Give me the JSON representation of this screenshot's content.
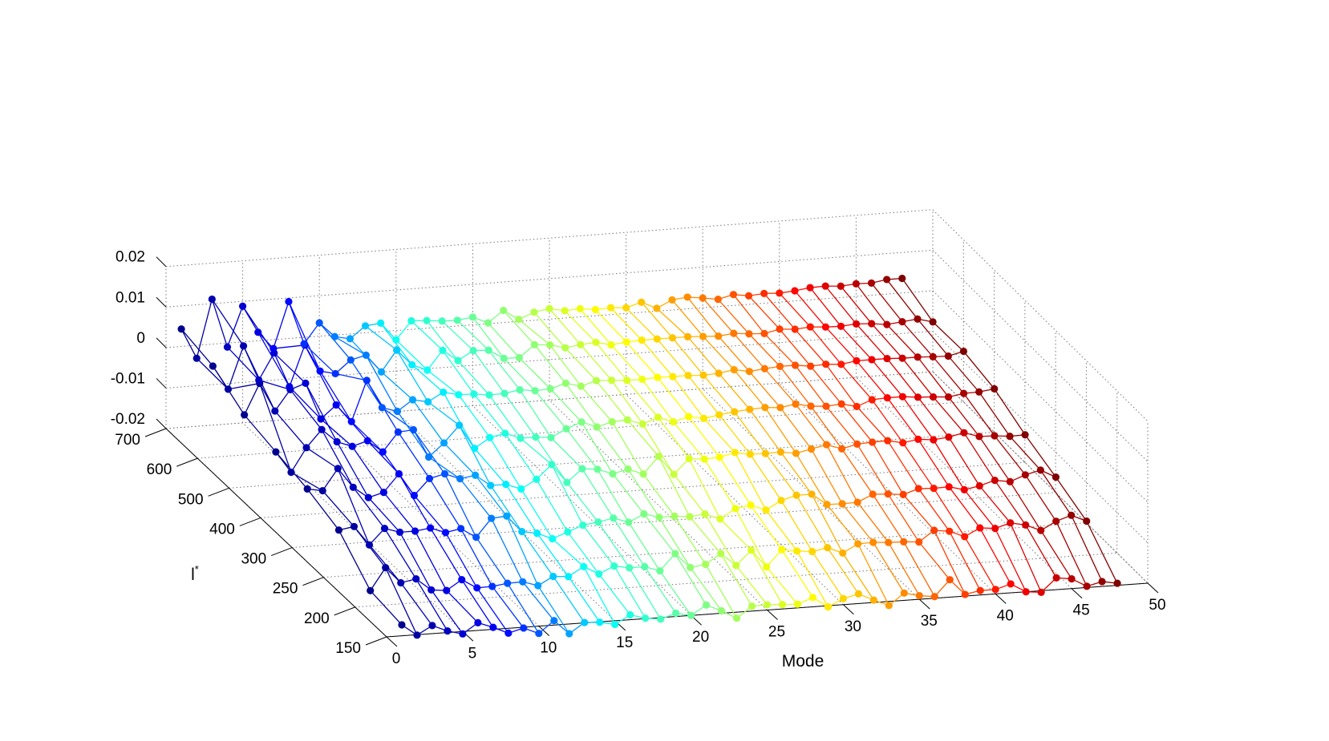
{
  "chart_data": {
    "type": "line3d",
    "xlabel": "Mode",
    "ylabel": "l*",
    "zlabel": "",
    "x_ticks": [
      0,
      5,
      10,
      15,
      20,
      25,
      30,
      35,
      40,
      45,
      50
    ],
    "y_ticks": [
      "150",
      "200",
      "250",
      "300",
      "400",
      "500",
      "600",
      "700"
    ],
    "z_ticks": [
      "-0.02",
      "-0.01",
      "0",
      "0.01",
      "0.02"
    ],
    "xlim": [
      0,
      50
    ],
    "zlim": [
      -0.02,
      0.02
    ],
    "grid": true,
    "colormap": "jet",
    "colormap_stops": [
      "#00008F",
      "#0000FF",
      "#00FFFF",
      "#80FF80",
      "#FFFF00",
      "#FF8000",
      "#FF0000",
      "#800000"
    ],
    "modes": [
      1,
      2,
      3,
      4,
      5,
      6,
      7,
      8,
      9,
      10,
      11,
      12,
      13,
      14,
      15,
      16,
      17,
      18,
      19,
      20,
      21,
      22,
      23,
      24,
      25,
      26,
      27,
      28,
      29,
      30,
      31,
      32,
      33,
      34,
      35,
      36,
      37,
      38,
      39,
      40,
      41,
      42,
      43,
      44,
      45,
      46,
      47,
      48
    ],
    "series": [
      {
        "l": "700",
        "values": [
          0.0043,
          -0.0032,
          0.0111,
          -0.001,
          0.0088,
          0.0021,
          -0.0022,
          0.0091,
          -0.0016,
          0.0033,
          -0.0004,
          -0.0012,
          0.0017,
          0.0021,
          -0.0023,
          0.0021,
          0.0019,
          0.0015,
          0.0014,
          0.0019,
          0.0002,
          0.003,
          0.0005,
          0.002,
          0.0026,
          0.0018,
          0.002,
          0.0015,
          0.0017,
          0.0014,
          0.0025,
          0.0007,
          0.0025,
          0.0029,
          0.0024,
          0.0018,
          0.0027,
          0.0021,
          0.0024,
          0.0022,
          0.0025,
          0.003,
          0.0031,
          0.0028,
          0.0031,
          0.003,
          0.0036,
          0.0036
        ]
      },
      {
        "l": "600",
        "values": [
          0.0025,
          -0.0035,
          0.0069,
          -0.0018,
          0.0046,
          -0.004,
          0.006,
          -0.0007,
          -0.0016,
          0.0015,
          0.0024,
          -0.002,
          0.0031,
          -0.0008,
          -0.0024,
          0.0022,
          -0.0006,
          0.0016,
          0.0014,
          -0.0009,
          -0.001,
          0.0019,
          0.0016,
          0.0006,
          0.0011,
          0.0014,
          0.0005,
          0.0009,
          0.0011,
          0.0011,
          0.0011,
          0.0011,
          0.0009,
          0.0007,
          0.0011,
          0.0007,
          0.0005,
          0.0013,
          0.001,
          0.0013,
          0.001,
          0.0009,
          0.0012,
          0.001,
          0.0005,
          0.0009,
          0.0013,
          0.0003
        ]
      },
      {
        "l": "500",
        "values": [
          -0.0022,
          0.0053,
          -0.0018,
          0.0032,
          0.0045,
          -0.0046,
          -0.0014,
          -0.0058,
          0.0041,
          -0.0029,
          -0.0041,
          -0.0015,
          -0.0023,
          -0.0002,
          -0.0011,
          -0.0012,
          -0.0017,
          -0.0016,
          -0.001,
          -0.0015,
          -0.0013,
          -0.0002,
          -0.0012,
          -0.0001,
          -0.0003,
          -0.0006,
          -0.0006,
          -0.0004,
          -0.0005,
          -0.0005,
          -0.0007,
          -0.0005,
          0.0001,
          -0.0006,
          -0.0002,
          0.0001,
          0.0001,
          -0.0004,
          -0.0002,
          -0.0005,
          0.0001,
          0.0001,
          0.0001,
          -0.0001,
          -0.0001,
          -0.0003,
          -0.0004,
          0.0005
        ]
      },
      {
        "l": "400",
        "values": [
          -0.004,
          -0.0093,
          -0.0035,
          0.0007,
          -0.0026,
          -0.004,
          -0.0029,
          -0.0059,
          -0.0013,
          -0.001,
          -0.008,
          -0.0048,
          -0.0007,
          -0.0067,
          -0.0043,
          -0.0035,
          -0.005,
          -0.005,
          -0.0054,
          -0.0035,
          -0.0021,
          -0.0036,
          -0.0026,
          -0.0024,
          -0.0037,
          -0.0023,
          -0.0037,
          -0.0027,
          -0.0034,
          -0.0028,
          -0.0023,
          -0.002,
          -0.0018,
          -0.0021,
          -0.0015,
          -0.0023,
          -0.0026,
          -0.0023,
          -0.0032,
          -0.0018,
          -0.0016,
          -0.0016,
          -0.002,
          -0.0022,
          -0.0025,
          -0.0019,
          -0.0018,
          -0.0013
        ]
      },
      {
        "l": "300",
        "values": [
          -0.0058,
          -0.0065,
          -0.0013,
          -0.0062,
          -0.009,
          -0.008,
          -0.0037,
          -0.0093,
          -0.0054,
          -0.0045,
          -0.006,
          -0.0054,
          -0.0082,
          -0.0082,
          -0.0096,
          -0.0075,
          -0.0041,
          -0.0088,
          -0.0057,
          -0.0061,
          -0.0075,
          -0.0066,
          -0.0081,
          -0.004,
          -0.0087,
          -0.0051,
          -0.0055,
          -0.0053,
          -0.0044,
          -0.0051,
          -0.0052,
          -0.0051,
          -0.0057,
          -0.0049,
          -0.0041,
          -0.0054,
          -0.0045,
          -0.0043,
          -0.0042,
          -0.005,
          -0.0044,
          -0.0048,
          -0.0044,
          -0.0036,
          -0.0048,
          -0.0049,
          -0.0053,
          -0.0052
        ]
      },
      {
        "l": "250",
        "values": [
          -0.0086,
          -0.008,
          -0.0128,
          -0.009,
          -0.0102,
          -0.0102,
          -0.0097,
          -0.0111,
          -0.0104,
          -0.0128,
          -0.0084,
          -0.0081,
          -0.0122,
          -0.0129,
          -0.0145,
          -0.0131,
          -0.0117,
          -0.0112,
          -0.0105,
          -0.0118,
          -0.01,
          -0.0111,
          -0.0111,
          -0.0115,
          -0.0111,
          -0.0126,
          -0.0103,
          -0.0097,
          -0.0112,
          -0.0091,
          -0.0081,
          -0.0081,
          -0.0109,
          -0.011,
          -0.0109,
          -0.0092,
          -0.0094,
          -0.0098,
          -0.0086,
          -0.0088,
          -0.0087,
          -0.0097,
          -0.009,
          -0.0079,
          -0.0085,
          -0.0071,
          -0.0062,
          -0.0082
        ]
      },
      {
        "l": "200",
        "values": [
          -0.0162,
          -0.0108,
          -0.0148,
          -0.0141,
          -0.0171,
          -0.0175,
          -0.0151,
          -0.0174,
          -0.0173,
          -0.0168,
          -0.0167,
          -0.0179,
          -0.0159,
          -0.0162,
          -0.014,
          -0.0161,
          -0.0144,
          -0.0151,
          -0.0151,
          -0.0164,
          -0.0124,
          -0.0161,
          -0.0156,
          -0.0132,
          -0.0164,
          -0.0129,
          -0.0173,
          -0.0133,
          -0.0139,
          -0.0143,
          -0.0136,
          -0.0152,
          -0.0132,
          -0.0131,
          -0.0134,
          -0.0135,
          -0.0138,
          -0.0112,
          -0.0117,
          -0.0133,
          -0.0114,
          -0.0118,
          -0.0107,
          -0.0115,
          -0.0131,
          -0.0111,
          -0.0099,
          -0.0116
        ]
      },
      {
        "l": "150",
        "values": [
          -0.0173,
          -0.0201,
          -0.018,
          -0.0196,
          -0.0206,
          -0.0181,
          -0.0195,
          -0.0212,
          -0.0202,
          -0.0218,
          -0.0189,
          -0.0224,
          -0.0199,
          -0.0201,
          -0.0209,
          -0.0188,
          -0.0199,
          -0.0204,
          -0.0192,
          -0.02,
          -0.0177,
          -0.0194,
          -0.0215,
          -0.0188,
          -0.0187,
          -0.0189,
          -0.0191,
          -0.0177,
          -0.0203,
          -0.0185,
          -0.0176,
          -0.0194,
          -0.021,
          -0.0182,
          -0.0191,
          -0.0196,
          -0.0157,
          -0.0196,
          -0.0189,
          -0.0189,
          -0.0178,
          -0.02,
          -0.0204,
          -0.0171,
          -0.0176,
          -0.0197,
          -0.0188,
          -0.0195
        ]
      }
    ]
  }
}
